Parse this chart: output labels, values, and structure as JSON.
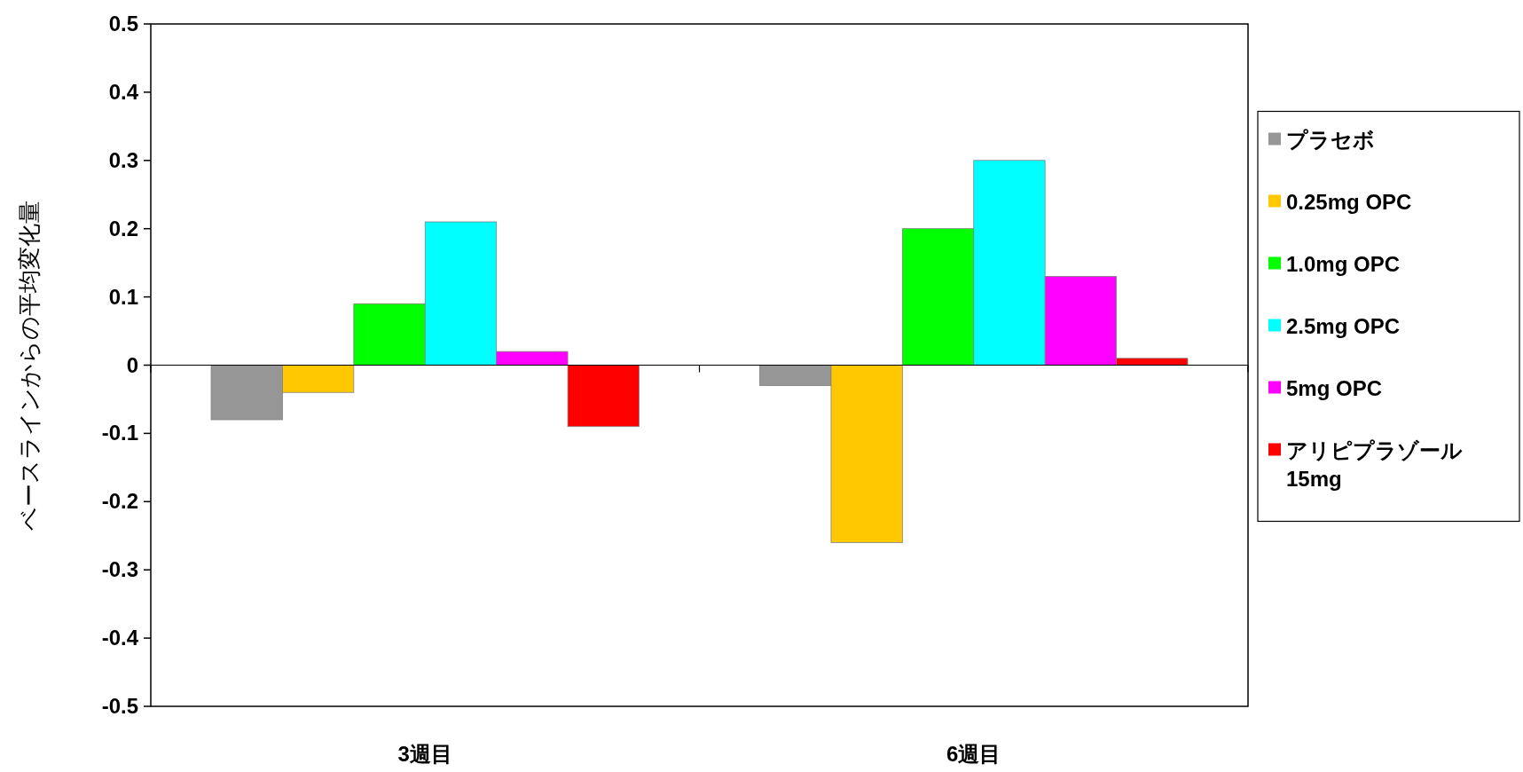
{
  "chart_data": {
    "type": "bar",
    "ylabel": "ベースラインからの平均変化量",
    "categories": [
      "3週目",
      "6週目"
    ],
    "series": [
      {
        "name": "プラセボ",
        "color": "#969696",
        "values": [
          -0.08,
          -0.03
        ]
      },
      {
        "name": "0.25mg OPC",
        "color": "#ffc800",
        "values": [
          -0.04,
          -0.26
        ]
      },
      {
        "name": "1.0mg OPC",
        "color": "#00ff00",
        "values": [
          0.09,
          0.2
        ]
      },
      {
        "name": "2.5mg OPC",
        "color": "#00ffff",
        "values": [
          0.21,
          0.3
        ]
      },
      {
        "name": "5mg OPC",
        "color": "#ff00ff",
        "values": [
          0.02,
          0.13
        ]
      },
      {
        "name": "アリピプラゾール 15mg",
        "color": "#ff0000",
        "values": [
          -0.09,
          0.01
        ]
      }
    ],
    "ylim": [
      -0.5,
      0.5
    ],
    "yticks": [
      -0.5,
      -0.4,
      -0.3,
      -0.2,
      -0.1,
      0,
      0.1,
      0.2,
      0.3,
      0.4,
      0.5
    ],
    "legend": "right"
  }
}
